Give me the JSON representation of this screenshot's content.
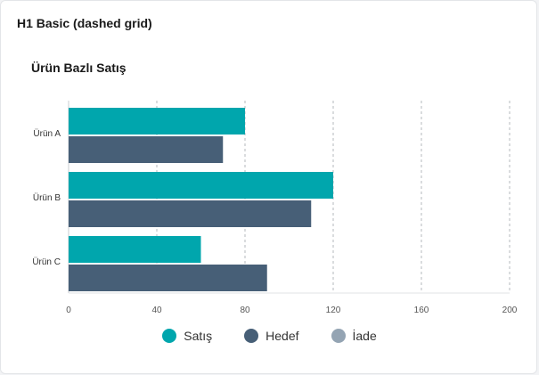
{
  "card": {
    "title": "H1 Basic (dashed grid)"
  },
  "chart_data": {
    "type": "bar",
    "orientation": "horizontal",
    "title": "Ürün Bazlı Satış",
    "categories": [
      "Ürün A",
      "Ürün B",
      "Ürün C"
    ],
    "series": [
      {
        "name": "Satış",
        "values": [
          80,
          120,
          60
        ],
        "color": "#00a6ad"
      },
      {
        "name": "Hedef",
        "values": [
          70,
          110,
          90
        ],
        "color": "#475f77"
      },
      {
        "name": "İade",
        "values": [
          null,
          null,
          null
        ],
        "color": "#94a4b3"
      }
    ],
    "xlim": [
      0,
      200
    ],
    "xticks": [
      0,
      40,
      80,
      120,
      160,
      200
    ],
    "grid": "dashed vertical",
    "legend_position": "bottom-center"
  }
}
